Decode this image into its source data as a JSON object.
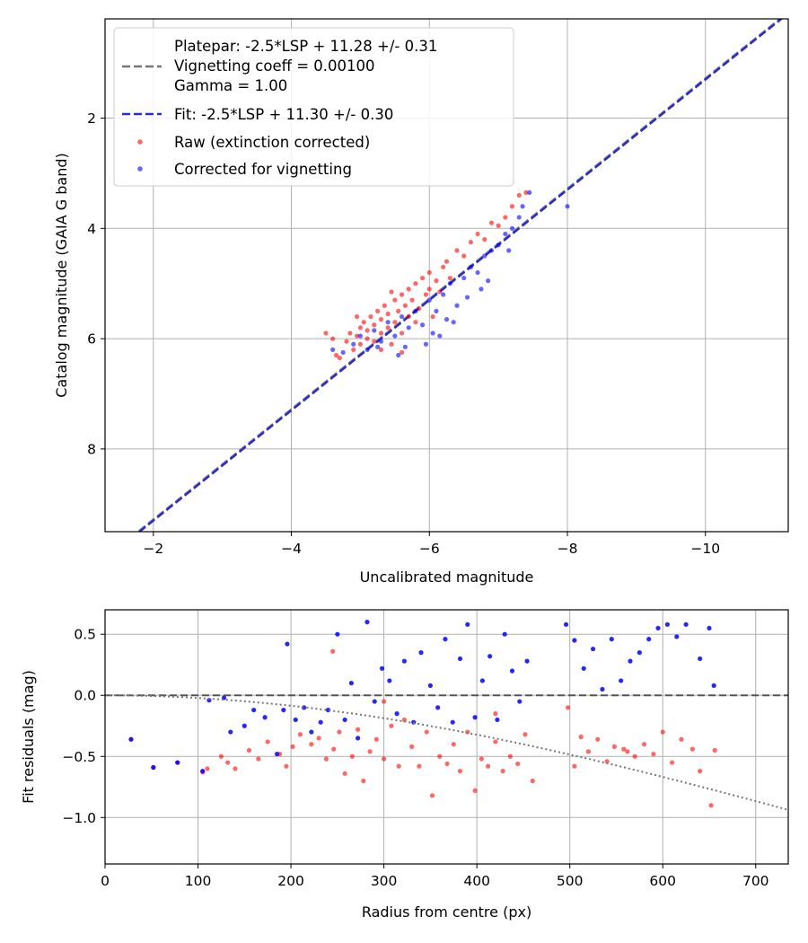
{
  "chart_data": [
    {
      "type": "scatter",
      "xlabel": "Uncalibrated magnitude",
      "ylabel": "Catalog magnitude (GAIA G band)",
      "xlim": [
        -1.3,
        -11.2
      ],
      "ylim": [
        9.5,
        0.2
      ],
      "x_inverted": true,
      "y_inverted": true,
      "x_ticks": [
        -2,
        -4,
        -6,
        -8,
        -10
      ],
      "x_tick_labels": [
        "−2",
        "−4",
        "−6",
        "−8",
        "−10"
      ],
      "y_ticks": [
        2,
        4,
        6,
        8
      ],
      "y_tick_labels": [
        "2",
        "4",
        "6",
        "8"
      ],
      "grid": true,
      "legend_position": "upper-left",
      "legend": [
        {
          "kind": "line",
          "style": "dashed",
          "color": "#777777",
          "lines": [
            "Platepar: -2.5*LSP + 11.28 +/- 0.31",
            "Vignetting coeff = 0.00100",
            "Gamma = 1.00"
          ]
        },
        {
          "kind": "line",
          "style": "dashed",
          "color": "#2a2ad0",
          "lines": [
            "Fit: -2.5*LSP + 11.30 +/- 0.30"
          ]
        },
        {
          "kind": "marker",
          "color": "#ff0000",
          "lines": [
            "Raw (extinction corrected)"
          ]
        },
        {
          "kind": "marker",
          "color": "#0000ff",
          "lines": [
            "Corrected for vignetting"
          ]
        }
      ],
      "lines": [
        {
          "name": "Platepar",
          "slope": -2.5,
          "intercept": 11.28,
          "color": "#777777"
        },
        {
          "name": "Fit",
          "slope": -2.5,
          "intercept": 11.3,
          "color": "#2a2ad0"
        }
      ],
      "series": [
        {
          "name": "Raw (extinction corrected)",
          "color": "#ff0000",
          "points": [
            [
              -4.5,
              5.9
            ],
            [
              -4.6,
              6.0
            ],
            [
              -4.65,
              6.3
            ],
            [
              -4.7,
              6.35
            ],
            [
              -4.8,
              6.05
            ],
            [
              -4.85,
              5.9
            ],
            [
              -4.9,
              6.2
            ],
            [
              -4.95,
              5.95
            ],
            [
              -5.0,
              5.8
            ],
            [
              -5.0,
              6.1
            ],
            [
              -5.05,
              5.7
            ],
            [
              -5.1,
              6.0
            ],
            [
              -5.1,
              5.85
            ],
            [
              -5.15,
              5.6
            ],
            [
              -5.2,
              5.75
            ],
            [
              -5.2,
              6.05
            ],
            [
              -5.25,
              5.5
            ],
            [
              -5.3,
              5.9
            ],
            [
              -5.3,
              5.65
            ],
            [
              -5.35,
              5.4
            ],
            [
              -5.4,
              5.8
            ],
            [
              -5.4,
              5.55
            ],
            [
              -5.45,
              6.1
            ],
            [
              -5.5,
              5.3
            ],
            [
              -5.5,
              5.7
            ],
            [
              -5.55,
              5.5
            ],
            [
              -5.6,
              5.2
            ],
            [
              -5.6,
              5.9
            ],
            [
              -5.65,
              5.4
            ],
            [
              -5.7,
              5.1
            ],
            [
              -5.7,
              5.6
            ],
            [
              -5.75,
              5.3
            ],
            [
              -5.8,
              5.0
            ],
            [
              -5.85,
              5.45
            ],
            [
              -5.9,
              4.9
            ],
            [
              -5.95,
              5.2
            ],
            [
              -6.0,
              4.8
            ],
            [
              -6.0,
              5.1
            ],
            [
              -6.1,
              4.95
            ],
            [
              -6.15,
              5.15
            ],
            [
              -6.2,
              4.7
            ],
            [
              -6.25,
              4.6
            ],
            [
              -6.3,
              4.9
            ],
            [
              -6.4,
              4.4
            ],
            [
              -6.5,
              4.5
            ],
            [
              -6.6,
              4.25
            ],
            [
              -6.7,
              4.1
            ],
            [
              -6.8,
              4.2
            ],
            [
              -6.9,
              3.9
            ],
            [
              -7.0,
              3.95
            ],
            [
              -7.1,
              3.8
            ],
            [
              -7.2,
              3.6
            ],
            [
              -7.3,
              3.4
            ],
            [
              -7.4,
              3.35
            ],
            [
              -5.3,
              6.2
            ],
            [
              -5.6,
              6.25
            ],
            [
              -4.95,
              5.6
            ],
            [
              -5.8,
              5.7
            ],
            [
              -6.05,
              5.6
            ],
            [
              -5.45,
              5.15
            ]
          ]
        },
        {
          "name": "Corrected for vignetting",
          "color": "#0000ff",
          "points": [
            [
              -4.6,
              6.2
            ],
            [
              -4.75,
              6.25
            ],
            [
              -4.9,
              6.1
            ],
            [
              -5.0,
              5.95
            ],
            [
              -5.1,
              6.2
            ],
            [
              -5.2,
              5.85
            ],
            [
              -5.3,
              6.05
            ],
            [
              -5.4,
              5.7
            ],
            [
              -5.5,
              5.95
            ],
            [
              -5.6,
              5.6
            ],
            [
              -5.65,
              6.15
            ],
            [
              -5.7,
              5.8
            ],
            [
              -5.8,
              5.5
            ],
            [
              -5.9,
              5.75
            ],
            [
              -6.0,
              5.3
            ],
            [
              -6.05,
              5.9
            ],
            [
              -6.1,
              5.5
            ],
            [
              -6.2,
              5.2
            ],
            [
              -6.25,
              5.65
            ],
            [
              -6.3,
              5.0
            ],
            [
              -6.4,
              5.4
            ],
            [
              -6.5,
              4.9
            ],
            [
              -6.55,
              5.25
            ],
            [
              -6.6,
              4.7
            ],
            [
              -6.7,
              4.8
            ],
            [
              -6.8,
              4.5
            ],
            [
              -6.85,
              4.95
            ],
            [
              -6.9,
              4.4
            ],
            [
              -7.0,
              4.3
            ],
            [
              -7.1,
              4.1
            ],
            [
              -7.15,
              4.4
            ],
            [
              -7.2,
              4.0
            ],
            [
              -7.3,
              3.8
            ],
            [
              -7.35,
              3.6
            ],
            [
              -7.45,
              3.35
            ],
            [
              -8.0,
              3.6
            ],
            [
              -5.95,
              6.1
            ],
            [
              -6.35,
              5.7
            ],
            [
              -5.55,
              6.3
            ],
            [
              -6.15,
              5.95
            ],
            [
              -6.75,
              5.1
            ],
            [
              -5.25,
              6.15
            ]
          ]
        }
      ]
    },
    {
      "type": "scatter",
      "xlabel": "Radius from centre (px)",
      "ylabel": "Fit residuals (mag)",
      "xlim": [
        0,
        735
      ],
      "ylim": [
        -1.38,
        0.7
      ],
      "x_ticks": [
        0,
        100,
        200,
        300,
        400,
        500,
        600,
        700
      ],
      "x_tick_labels": [
        "0",
        "100",
        "200",
        "300",
        "400",
        "500",
        "600",
        "700"
      ],
      "y_ticks": [
        0.5,
        0.0,
        -0.5,
        -1.0
      ],
      "y_tick_labels": [
        "0.5",
        "0.0",
        "−0.5",
        "−1.0"
      ],
      "grid": true,
      "reference_lines": [
        {
          "kind": "horizontal",
          "y": 0.0,
          "style": "dashed",
          "color": "#555555"
        },
        {
          "kind": "vignetting_curve",
          "coeff": 0.001,
          "style": "dotted",
          "color": "#777777"
        }
      ],
      "series": [
        {
          "name": "Raw (extinction corrected)",
          "color": "#ff0000",
          "points": [
            [
              28,
              -0.36
            ],
            [
              52,
              -0.59
            ],
            [
              78,
              -0.55
            ],
            [
              105,
              -0.63
            ],
            [
              110,
              -0.6
            ],
            [
              125,
              -0.5
            ],
            [
              132,
              -0.55
            ],
            [
              140,
              -0.6
            ],
            [
              155,
              -0.45
            ],
            [
              165,
              -0.52
            ],
            [
              175,
              -0.38
            ],
            [
              188,
              -0.48
            ],
            [
              195,
              -0.58
            ],
            [
              202,
              -0.42
            ],
            [
              210,
              -0.32
            ],
            [
              222,
              -0.4
            ],
            [
              230,
              -0.35
            ],
            [
              238,
              -0.52
            ],
            [
              246,
              -0.44
            ],
            [
              252,
              -0.3
            ],
            [
              258,
              -0.64
            ],
            [
              266,
              -0.5
            ],
            [
              272,
              -0.28
            ],
            [
              278,
              -0.7
            ],
            [
              285,
              -0.46
            ],
            [
              292,
              -0.36
            ],
            [
              300,
              -0.52
            ],
            [
              308,
              -0.25
            ],
            [
              316,
              -0.58
            ],
            [
              322,
              -0.2
            ],
            [
              330,
              -0.42
            ],
            [
              338,
              -0.58
            ],
            [
              346,
              -0.3
            ],
            [
              352,
              -0.82
            ],
            [
              360,
              -0.5
            ],
            [
              368,
              -0.56
            ],
            [
              375,
              -0.4
            ],
            [
              382,
              -0.62
            ],
            [
              390,
              -0.3
            ],
            [
              398,
              -0.78
            ],
            [
              405,
              -0.52
            ],
            [
              412,
              -0.58
            ],
            [
              420,
              -0.38
            ],
            [
              428,
              -0.62
            ],
            [
              436,
              -0.5
            ],
            [
              444,
              -0.56
            ],
            [
              452,
              -0.32
            ],
            [
              460,
              -0.7
            ],
            [
              498,
              -0.1
            ],
            [
              505,
              -0.58
            ],
            [
              512,
              -0.34
            ],
            [
              520,
              -0.46
            ],
            [
              530,
              -0.36
            ],
            [
              540,
              -0.54
            ],
            [
              548,
              -0.42
            ],
            [
              558,
              -0.44
            ],
            [
              562,
              -0.46
            ],
            [
              570,
              -0.5
            ],
            [
              580,
              -0.4
            ],
            [
              590,
              -0.48
            ],
            [
              600,
              -0.3
            ],
            [
              610,
              -0.55
            ],
            [
              620,
              -0.36
            ],
            [
              632,
              -0.44
            ],
            [
              640,
              -0.62
            ],
            [
              652,
              -0.9
            ],
            [
              656,
              -0.45
            ],
            [
              245,
              0.36
            ],
            [
              300,
              -0.05
            ],
            [
              420,
              -0.15
            ]
          ]
        },
        {
          "name": "Corrected for vignetting",
          "color": "#0000ff",
          "points": [
            [
              28,
              -0.36
            ],
            [
              52,
              -0.59
            ],
            [
              78,
              -0.55
            ],
            [
              105,
              -0.62
            ],
            [
              112,
              -0.04
            ],
            [
              128,
              -0.02
            ],
            [
              135,
              -0.3
            ],
            [
              150,
              -0.25
            ],
            [
              160,
              -0.12
            ],
            [
              172,
              -0.18
            ],
            [
              185,
              -0.48
            ],
            [
              192,
              -0.12
            ],
            [
              196,
              0.42
            ],
            [
              205,
              -0.2
            ],
            [
              214,
              -0.1
            ],
            [
              222,
              -0.3
            ],
            [
              232,
              -0.22
            ],
            [
              240,
              -0.12
            ],
            [
              250,
              0.5
            ],
            [
              258,
              -0.2
            ],
            [
              265,
              0.1
            ],
            [
              272,
              -0.35
            ],
            [
              282,
              0.6
            ],
            [
              290,
              -0.05
            ],
            [
              298,
              0.22
            ],
            [
              306,
              0.12
            ],
            [
              314,
              -0.15
            ],
            [
              322,
              0.28
            ],
            [
              332,
              -0.22
            ],
            [
              340,
              0.35
            ],
            [
              350,
              0.08
            ],
            [
              358,
              -0.1
            ],
            [
              366,
              0.46
            ],
            [
              374,
              -0.22
            ],
            [
              382,
              0.3
            ],
            [
              390,
              0.58
            ],
            [
              398,
              -0.18
            ],
            [
              406,
              0.12
            ],
            [
              414,
              0.32
            ],
            [
              422,
              -0.2
            ],
            [
              430,
              0.5
            ],
            [
              438,
              0.2
            ],
            [
              446,
              -0.05
            ],
            [
              454,
              0.28
            ],
            [
              496,
              0.58
            ],
            [
              505,
              0.45
            ],
            [
              515,
              0.22
            ],
            [
              525,
              0.38
            ],
            [
              535,
              0.05
            ],
            [
              545,
              0.46
            ],
            [
              555,
              0.12
            ],
            [
              565,
              0.28
            ],
            [
              575,
              0.35
            ],
            [
              585,
              0.46
            ],
            [
              595,
              0.55
            ],
            [
              605,
              0.58
            ],
            [
              615,
              0.48
            ],
            [
              625,
              0.58
            ],
            [
              640,
              0.3
            ],
            [
              650,
              0.55
            ],
            [
              655,
              0.08
            ]
          ]
        }
      ]
    }
  ]
}
